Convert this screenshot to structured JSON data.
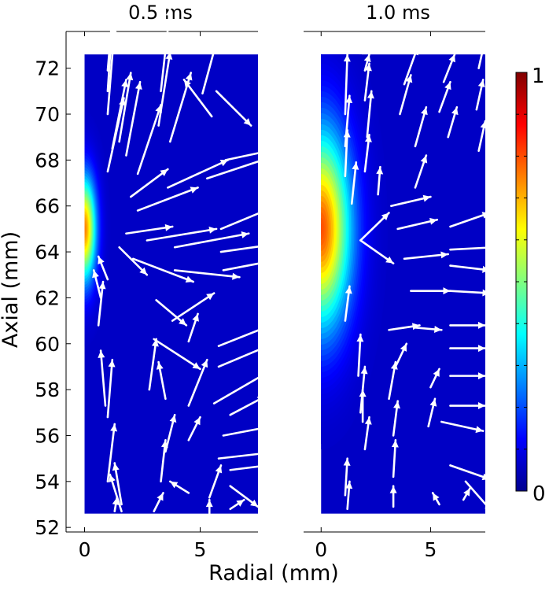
{
  "chart_data": {
    "type": "heatmap",
    "xlabel": "Radial (mm)",
    "ylabel": "Axial (mm)",
    "xlim": [
      -0.8,
      7.5
    ],
    "ylim": [
      51.8,
      73.6
    ],
    "y_ticks": [
      52,
      54,
      56,
      58,
      60,
      62,
      64,
      66,
      68,
      70,
      72
    ],
    "x_ticks": [
      0,
      5
    ],
    "colorbar": {
      "min_label": "0",
      "max_label": "1",
      "min": 0,
      "max": 1,
      "colormap": "jet",
      "ticks": [
        0.1,
        0.2,
        0.3,
        0.4,
        0.5,
        0.6,
        0.7,
        0.8,
        0.9
      ]
    },
    "domain": {
      "r": [
        0,
        7.5
      ],
      "z": [
        52.6,
        72.6
      ]
    },
    "panels": [
      {
        "title": "0.5 ms",
        "hotspot": {
          "r": 0,
          "z": 65.0,
          "peak": 0.75,
          "sigma_r": 0.35,
          "sigma_z": 1.6
        },
        "arrows": [
          [
            1.0,
            71.9,
            0.3,
            3.5
          ],
          [
            1.0,
            71.0,
            0.2,
            3.0
          ],
          [
            1.0,
            70.0,
            0.3,
            3.8
          ],
          [
            1.2,
            68.5,
            0.6,
            3.0
          ],
          [
            1.5,
            68.8,
            0.5,
            3.0
          ],
          [
            1.8,
            68.2,
            0.6,
            3.2
          ],
          [
            1.0,
            67.5,
            0.7,
            3.2
          ],
          [
            2.3,
            67.4,
            1.0,
            3.0
          ],
          [
            3.3,
            71.0,
            0.4,
            3.6
          ],
          [
            3.2,
            69.5,
            0.5,
            3.2
          ],
          [
            3.7,
            68.8,
            0.9,
            3.0
          ],
          [
            5.1,
            70.9,
            0.7,
            2.6
          ],
          [
            5.5,
            69.9,
            -1.2,
            1.6
          ],
          [
            5.7,
            71.0,
            1.5,
            -1.5
          ],
          [
            2.0,
            66.4,
            1.6,
            1.2
          ],
          [
            2.3,
            65.8,
            2.6,
            1.0
          ],
          [
            3.6,
            66.8,
            2.6,
            1.2
          ],
          [
            5.3,
            67.2,
            3.0,
            1.0
          ],
          [
            6.1,
            68.0,
            2.8,
            0.6
          ],
          [
            1.8,
            64.8,
            2.0,
            0.3
          ],
          [
            2.7,
            64.5,
            3.0,
            0.5
          ],
          [
            3.9,
            64.2,
            3.2,
            0.6
          ],
          [
            5.9,
            65.0,
            2.4,
            1.0
          ],
          [
            1.5,
            64.2,
            1.2,
            -1.2
          ],
          [
            2.1,
            63.7,
            2.6,
            -1.0
          ],
          [
            3.9,
            63.2,
            2.8,
            -0.3
          ],
          [
            5.9,
            64.0,
            2.8,
            0.4
          ],
          [
            6.0,
            63.2,
            2.6,
            0.5
          ],
          [
            1.0,
            62.8,
            -0.4,
            1.0
          ],
          [
            0.7,
            62.0,
            -0.3,
            1.2
          ],
          [
            0.6,
            60.8,
            0.2,
            1.9
          ],
          [
            3.1,
            61.9,
            1.3,
            -1.1
          ],
          [
            3.8,
            61.0,
            1.8,
            1.2
          ],
          [
            3.0,
            60.2,
            2.0,
            -1.3
          ],
          [
            4.5,
            60.1,
            0.4,
            1.2
          ],
          [
            5.8,
            59.9,
            2.5,
            1.0
          ],
          [
            5.8,
            59.0,
            2.6,
            1.1
          ],
          [
            0.9,
            57.3,
            -0.2,
            2.4
          ],
          [
            1.0,
            56.8,
            0.2,
            2.5
          ],
          [
            2.8,
            58.0,
            0.3,
            2.2
          ],
          [
            3.5,
            57.6,
            -0.3,
            1.6
          ],
          [
            4.5,
            57.3,
            0.8,
            2.0
          ],
          [
            5.6,
            57.4,
            2.4,
            1.4
          ],
          [
            6.3,
            56.9,
            1.5,
            0.8
          ],
          [
            6.0,
            56.0,
            2.6,
            0.5
          ],
          [
            5.8,
            55.0,
            2.6,
            0.3
          ],
          [
            6.3,
            54.5,
            1.6,
            0.2
          ],
          [
            1.0,
            54.0,
            0.3,
            2.5
          ],
          [
            1.6,
            53.0,
            -0.3,
            1.8
          ],
          [
            1.6,
            52.7,
            -0.5,
            1.6
          ],
          [
            3.3,
            54.0,
            0.2,
            1.8
          ],
          [
            3.5,
            55.3,
            0.4,
            1.6
          ],
          [
            4.5,
            55.8,
            0.5,
            1.0
          ],
          [
            4.5,
            53.5,
            -0.8,
            0.5
          ],
          [
            5.4,
            53.3,
            0.5,
            1.4
          ],
          [
            5.4,
            52.6,
            0.0,
            0.6
          ],
          [
            6.3,
            53.8,
            1.2,
            -0.9
          ],
          [
            6.3,
            52.8,
            0.6,
            0.4
          ],
          [
            1.3,
            52.7,
            0.1,
            0.6
          ],
          [
            3.0,
            52.7,
            0.4,
            0.8
          ]
        ]
      },
      {
        "title": "1.0 ms",
        "hotspot": {
          "r": 0,
          "z": 65.0,
          "peak": 0.8,
          "sigma_r": 0.95,
          "sigma_z": 3.0
        },
        "arrows": [
          [
            1.1,
            70.0,
            0.1,
            2.6
          ],
          [
            1.1,
            68.6,
            0.2,
            2.2
          ],
          [
            1.1,
            67.3,
            0.1,
            2.0
          ],
          [
            1.4,
            66.1,
            0.2,
            1.8
          ],
          [
            2.0,
            71.9,
            0.2,
            0.7
          ],
          [
            2.0,
            70.6,
            0.2,
            1.6
          ],
          [
            2.1,
            69.0,
            0.2,
            2.0
          ],
          [
            2.0,
            67.5,
            0.2,
            1.6
          ],
          [
            2.6,
            66.5,
            0.1,
            1.2
          ],
          [
            3.8,
            71.3,
            0.6,
            1.6
          ],
          [
            3.6,
            70.0,
            0.5,
            1.7
          ],
          [
            4.3,
            68.6,
            0.5,
            1.7
          ],
          [
            4.3,
            66.8,
            0.5,
            1.4
          ],
          [
            5.6,
            71.4,
            0.5,
            1.2
          ],
          [
            5.4,
            70.1,
            0.5,
            1.3
          ],
          [
            5.8,
            69.0,
            0.4,
            1.3
          ],
          [
            7.2,
            72.0,
            0.3,
            1.3
          ],
          [
            7.1,
            70.2,
            0.3,
            1.3
          ],
          [
            7.2,
            68.4,
            0.3,
            1.3
          ],
          [
            1.8,
            64.5,
            1.3,
            1.2
          ],
          [
            1.8,
            64.5,
            1.5,
            -1.0
          ],
          [
            3.2,
            66.0,
            1.8,
            0.4
          ],
          [
            3.5,
            65.0,
            1.8,
            0.4
          ],
          [
            3.8,
            63.7,
            2.0,
            0.2
          ],
          [
            5.9,
            65.1,
            1.8,
            0.6
          ],
          [
            5.9,
            64.1,
            2.0,
            0.1
          ],
          [
            5.9,
            63.4,
            1.8,
            -0.2
          ],
          [
            4.1,
            62.3,
            1.8,
            0.0
          ],
          [
            5.9,
            62.3,
            1.8,
            -0.1
          ],
          [
            1.1,
            61.0,
            0.2,
            1.5
          ],
          [
            3.1,
            60.6,
            1.4,
            0.2
          ],
          [
            3.4,
            59.0,
            0.5,
            1.0
          ],
          [
            3.1,
            57.6,
            0.3,
            1.6
          ],
          [
            3.3,
            56.0,
            0.2,
            1.5
          ],
          [
            4.3,
            60.7,
            1.2,
            -0.1
          ],
          [
            5.9,
            60.8,
            1.6,
            0.0
          ],
          [
            5.9,
            59.8,
            1.6,
            0.0
          ],
          [
            5.9,
            58.6,
            1.6,
            0.0
          ],
          [
            5.9,
            57.3,
            1.6,
            0.0
          ],
          [
            5.0,
            58.1,
            0.4,
            0.8
          ],
          [
            4.9,
            56.4,
            0.3,
            1.2
          ],
          [
            5.5,
            56.6,
            1.9,
            -0.4
          ],
          [
            5.9,
            54.7,
            1.8,
            -0.6
          ],
          [
            6.6,
            54.0,
            1.2,
            -1.3
          ],
          [
            1.7,
            58.6,
            0.1,
            1.8
          ],
          [
            1.8,
            57.0,
            0.2,
            2.0
          ],
          [
            1.9,
            56.6,
            0.0,
            1.4
          ],
          [
            2.0,
            55.4,
            0.2,
            1.4
          ],
          [
            1.1,
            53.4,
            0.1,
            1.6
          ],
          [
            1.2,
            52.8,
            0.1,
            1.2
          ],
          [
            3.3,
            54.2,
            0.1,
            1.6
          ],
          [
            3.3,
            52.9,
            0.0,
            0.9
          ],
          [
            5.4,
            53.0,
            -0.3,
            0.5
          ],
          [
            6.5,
            53.2,
            0.3,
            0.5
          ]
        ]
      }
    ]
  }
}
